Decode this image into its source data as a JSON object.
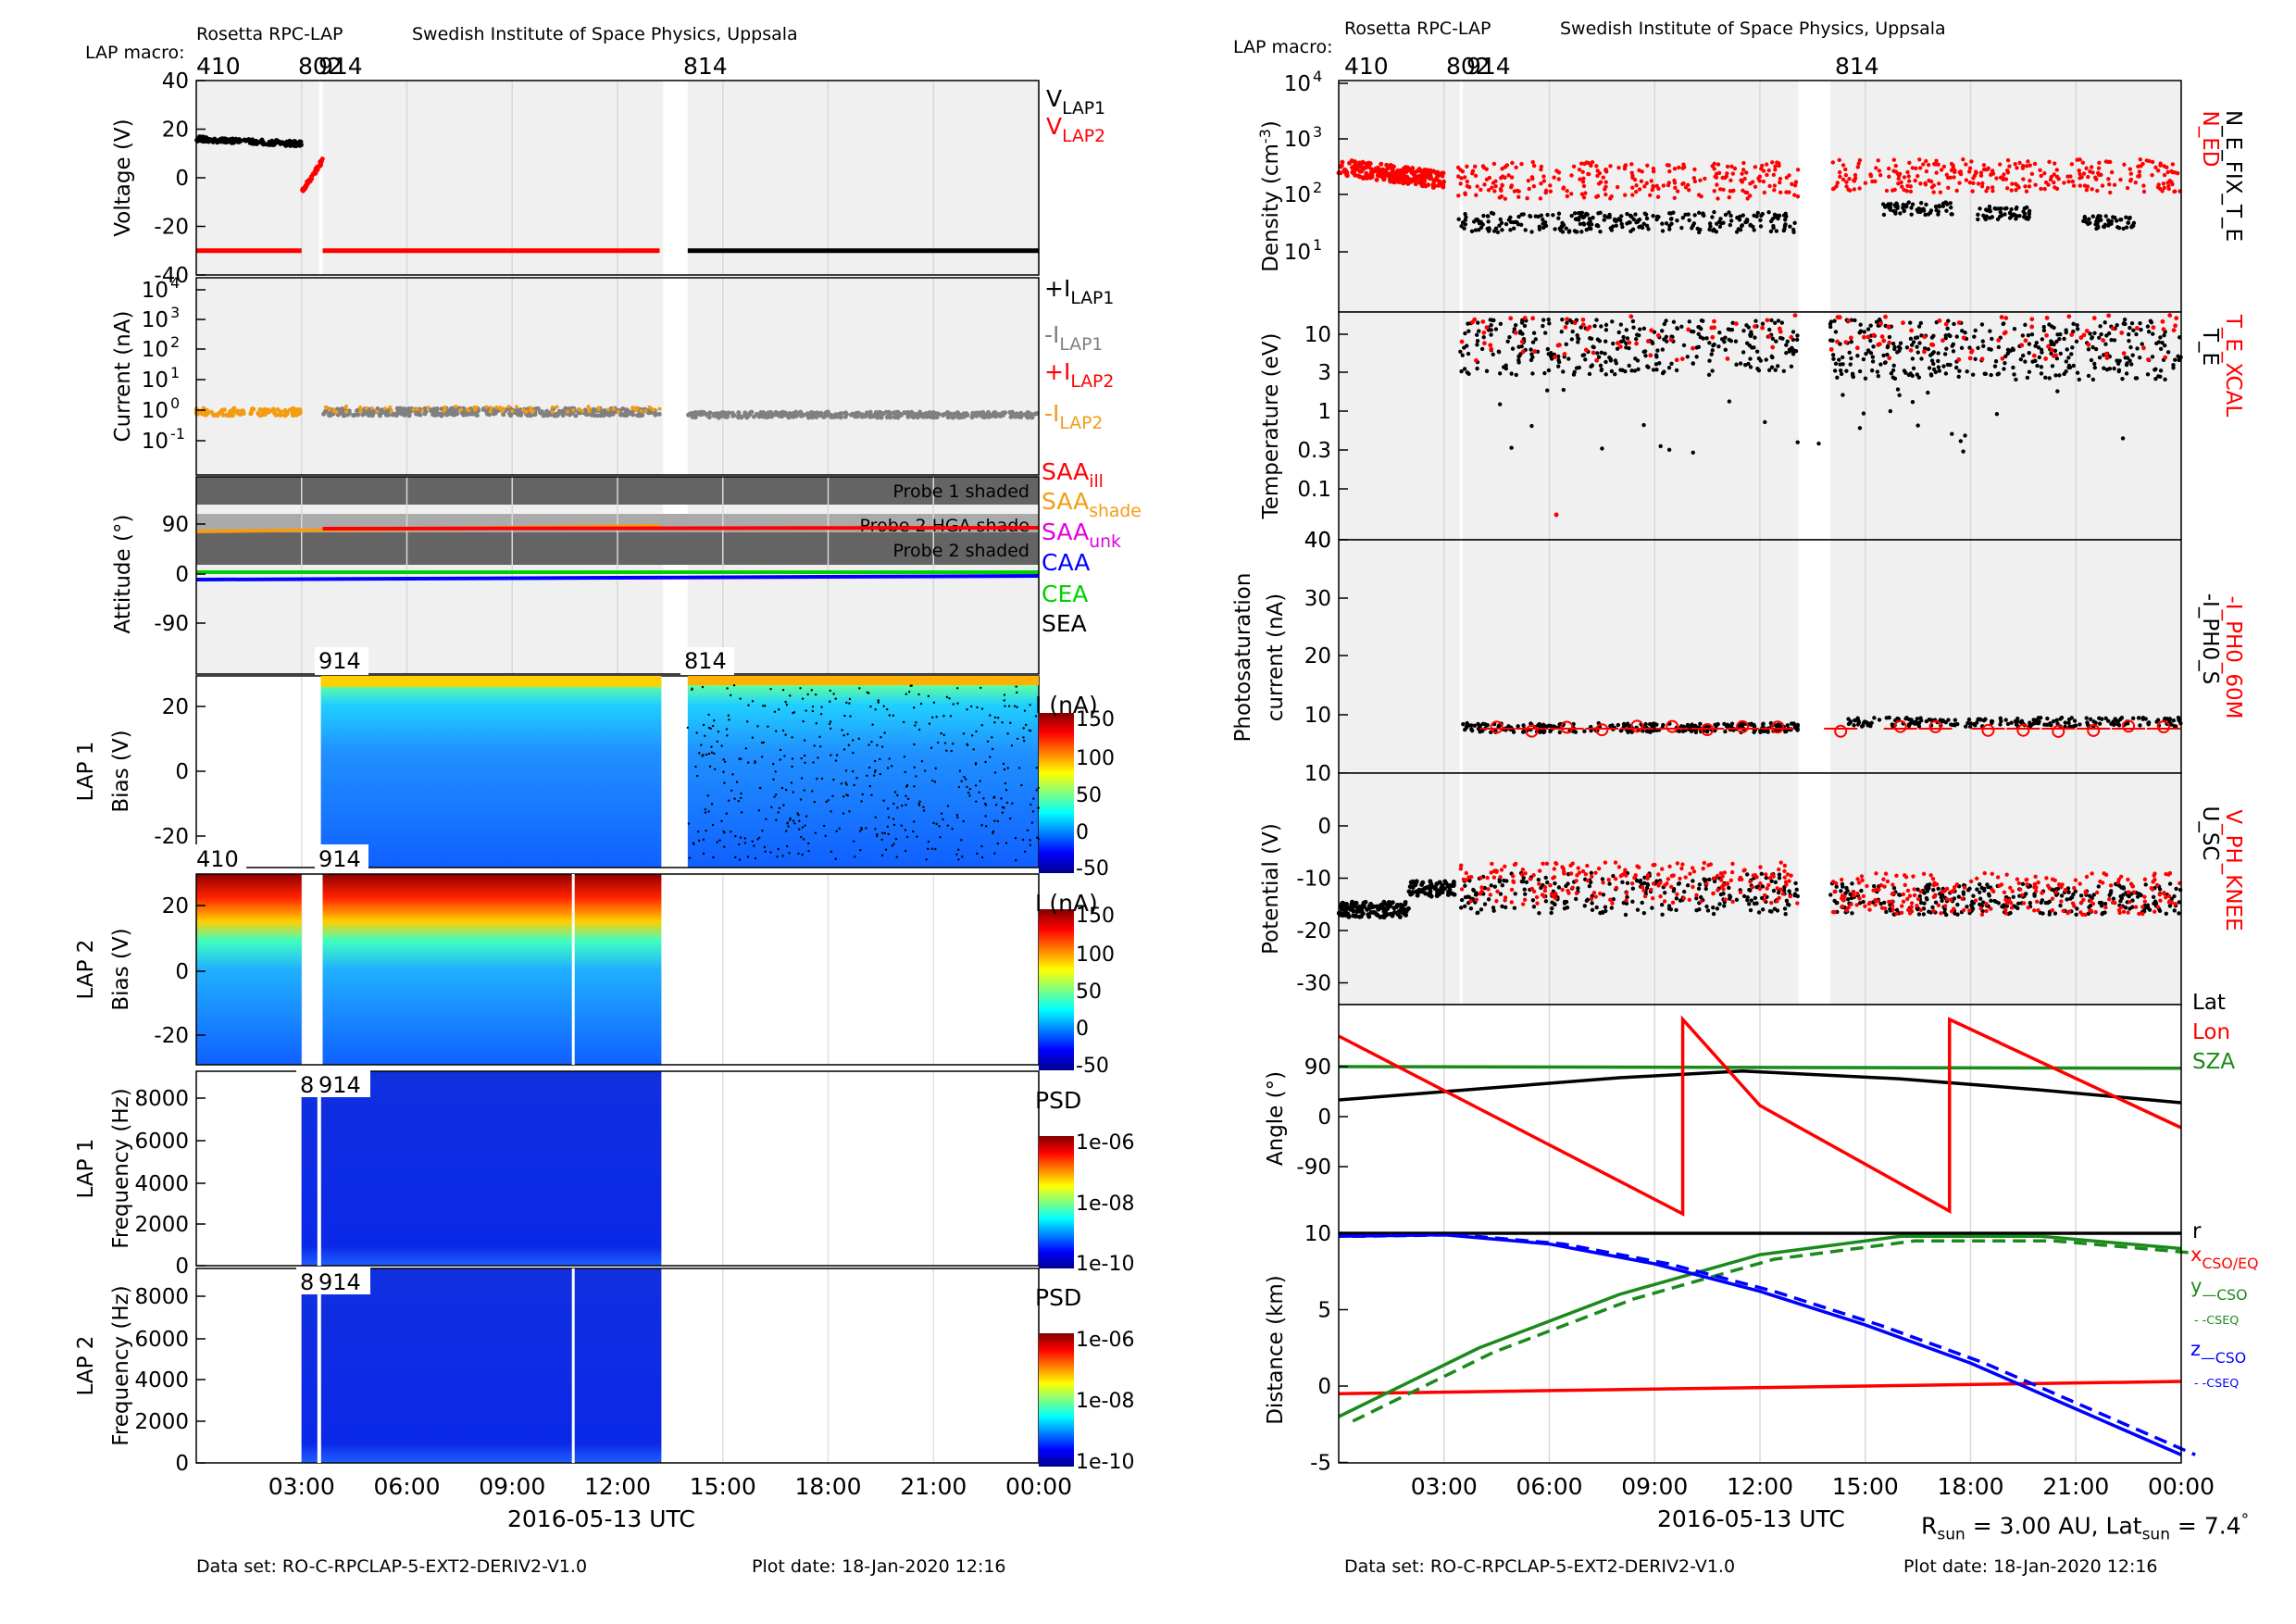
{
  "header": {
    "left_title": "Rosetta RPC-LAP",
    "left_institute": "Swedish Institute of Space Physics, Uppsala",
    "right_title": "Rosetta RPC-LAP",
    "right_institute": "Swedish Institute of Space Physics, Uppsala",
    "macro_label": "LAP macro:",
    "macros": [
      "410",
      "802",
      "914",
      "814"
    ]
  },
  "footer": {
    "dataset_left": "Data set: RO-C-RPCLAP-5-EXT2-DERIV2-V1.0",
    "plotdate_left": "Plot date: 18-Jan-2020 12:16",
    "dataset_right": "Data set: RO-C-RPCLAP-5-EXT2-DERIV2-V1.0",
    "plotdate_right": "Plot date: 18-Jan-2020 12:16",
    "rsun_text": "R",
    "rsun_sub": "sun",
    "rsun_val": " = 3.00 AU, Lat",
    "latsun_sub": "sun",
    "latsun_val": " = 7.4",
    "deg": "°"
  },
  "x_axis": {
    "label": "2016-05-13 UTC",
    "ticks": [
      "03:00",
      "06:00",
      "09:00",
      "12:00",
      "15:00",
      "18:00",
      "21:00",
      "00:00"
    ]
  },
  "colors": {
    "black": "#000000",
    "red": "#ff0000",
    "gray": "#808080",
    "orange": "#f39c12",
    "magenta": "#e000e0",
    "blue": "#0000ff",
    "green": "#00d000",
    "darkgreen": "#1a8a1a",
    "panelbg": "#f0f0f0",
    "shade": "#646464",
    "shade_light": "#aaaaaa"
  },
  "chart_data": [
    {
      "id": "voltage",
      "type": "scatter",
      "ylabel": "Voltage (V)",
      "ylim": [
        -40,
        40
      ],
      "yticks": [
        "40",
        "20",
        "0",
        "-20",
        "-40"
      ],
      "legend": [
        {
          "name": "V",
          "sub": "LAP1",
          "color": "#000000"
        },
        {
          "name": "V",
          "sub": "LAP2",
          "color": "#ff0000"
        }
      ],
      "series": [
        {
          "name": "V_LAP1",
          "x_hours": [
            0,
            0.5,
            1,
            1.5,
            2,
            2.5,
            2.9,
            3.2,
            3.6
          ],
          "y": [
            16,
            16,
            15,
            16,
            15,
            14,
            13,
            12,
            13
          ]
        },
        {
          "name": "V_LAP2",
          "x_hours": [
            3.0,
            3.2,
            3.4,
            3.6
          ],
          "y": [
            -4,
            0,
            4,
            8
          ]
        },
        {
          "name": "V_LAP2 bias",
          "x_hours": [
            0,
            3.0
          ],
          "y": [
            -30,
            -30
          ]
        },
        {
          "name": "V_LAP2 bias",
          "x_hours": [
            3.6,
            13.2
          ],
          "y": [
            -30,
            -30
          ]
        },
        {
          "name": "V_LAP1 bias",
          "x_hours": [
            14.0,
            24
          ],
          "y": [
            -30,
            -30
          ]
        }
      ]
    },
    {
      "id": "current",
      "type": "scatter",
      "ylabel": "Current (nA)",
      "yscale": "log",
      "yticks": [
        "10",
        "10",
        "10",
        "10",
        "10",
        "10"
      ],
      "yexp": [
        "4",
        "3",
        "2",
        "1",
        "0",
        "-1"
      ],
      "legend": [
        {
          "name": "+I",
          "sub": "LAP1",
          "color": "#000000"
        },
        {
          "name": "-I",
          "sub": "LAP1",
          "color": "#808080"
        },
        {
          "name": "+I",
          "sub": "LAP2",
          "color": "#ff0000"
        },
        {
          "name": "-I",
          "sub": "LAP2",
          "color": "#f39c12"
        }
      ]
    },
    {
      "id": "attitude",
      "type": "line",
      "ylabel": "Attitude (°)",
      "yticks": [
        "90",
        "0",
        "-90"
      ],
      "shade_labels": [
        "Probe 1 shaded",
        "Probe 2 HGA shade",
        "Probe 2 shaded"
      ],
      "legend": [
        {
          "name": "SAA",
          "sub": "ill",
          "color": "#ff0000"
        },
        {
          "name": "SAA",
          "sub": "shade",
          "color": "#f39c12"
        },
        {
          "name": "SAA",
          "sub": "unk",
          "color": "#e000e0"
        },
        {
          "name": "CAA",
          "sub": "",
          "color": "#0000ff"
        },
        {
          "name": "CEA",
          "sub": "",
          "color": "#00d000"
        },
        {
          "name": "SEA",
          "sub": "",
          "color": "#000000"
        }
      ]
    },
    {
      "id": "lap1_bias",
      "type": "heatmap",
      "ylabel1": "LAP 1",
      "ylabel2": "Bias (V)",
      "yticks": [
        "20",
        "0",
        "-20"
      ],
      "colorbar_label": "I (nA)",
      "colorbar_ticks": [
        "150",
        "100",
        "50",
        "0",
        "-50"
      ],
      "labels": [
        "914",
        "814"
      ]
    },
    {
      "id": "lap2_bias",
      "type": "heatmap",
      "ylabel1": "LAP 2",
      "ylabel2": "Bias (V)",
      "yticks": [
        "20",
        "0",
        "-20"
      ],
      "colorbar_label": "I (nA)",
      "colorbar_ticks": [
        "150",
        "100",
        "50",
        "0",
        "-50"
      ],
      "labels": [
        "410",
        "914"
      ]
    },
    {
      "id": "lap1_freq",
      "type": "heatmap",
      "ylabel1": "LAP 1",
      "ylabel2": "Frequency (Hz)",
      "yticks": [
        "8000",
        "6000",
        "4000",
        "2000",
        "0"
      ],
      "colorbar_label": "PSD",
      "colorbar_ticks": [
        "1e-06",
        "1e-08",
        "1e-10"
      ],
      "labels": [
        "8",
        "914"
      ]
    },
    {
      "id": "lap2_freq",
      "type": "heatmap",
      "ylabel1": "LAP 2",
      "ylabel2": "Frequency (Hz)",
      "yticks": [
        "8000",
        "6000",
        "4000",
        "2000",
        "0"
      ],
      "colorbar_label": "PSD",
      "colorbar_ticks": [
        "1e-06",
        "1e-08",
        "1e-10"
      ],
      "labels": [
        "8",
        "914"
      ]
    },
    {
      "id": "density",
      "type": "scatter",
      "ylabel": "Density (cm",
      "ylabel_sup": "-3",
      "ylabel_end": ")",
      "yscale": "log",
      "yticks": [
        "10",
        "10",
        "10",
        "10"
      ],
      "yexp": [
        "4",
        "3",
        "2",
        "1"
      ],
      "legend_right": [
        {
          "name": "N_ED",
          "color": "#ff0000"
        },
        {
          "name": "N_E_FIX_T_E",
          "color": "#000000"
        }
      ]
    },
    {
      "id": "temperature",
      "type": "scatter",
      "ylabel": "Temperature (eV)",
      "yscale": "log",
      "yticks": [
        "10",
        "3",
        "1",
        "0.3",
        "0.1",
        "40"
      ],
      "legend_right": [
        {
          "name": "T_E_XCAL",
          "color": "#ff0000"
        },
        {
          "name": "T_E",
          "color": "#000000"
        }
      ]
    },
    {
      "id": "photosat",
      "type": "scatter",
      "ylabel1": "Photosaturation",
      "ylabel2": "current (nA)",
      "ylim": [
        10,
        40
      ],
      "yticks": [
        "40",
        "30",
        "20",
        "10",
        "10"
      ],
      "legend_right": [
        {
          "name": "-I_PH0_60M",
          "color": "#ff0000"
        },
        {
          "name": "-I_PH0_S",
          "color": "#000000"
        }
      ]
    },
    {
      "id": "potential",
      "type": "scatter",
      "ylabel": "Potential (V)",
      "ylim": [
        -30,
        0
      ],
      "yticks": [
        "0",
        "-10",
        "-20",
        "-30"
      ],
      "legend_right": [
        {
          "name": "V_PH_KNEE",
          "color": "#ff0000"
        },
        {
          "name": "U_SC",
          "color": "#000000"
        }
      ]
    },
    {
      "id": "angle",
      "type": "line",
      "ylabel": "Angle (°)",
      "ylim": [
        -180,
        180
      ],
      "yticks": [
        "90",
        "0",
        "-90"
      ],
      "legend": [
        {
          "name": "Lat",
          "color": "#000000"
        },
        {
          "name": "Lon",
          "color": "#ff0000"
        },
        {
          "name": "SZA",
          "color": "#1a8a1a"
        }
      ],
      "series": [
        {
          "name": "Lat",
          "x_hours": [
            0,
            4,
            8,
            11.5,
            16,
            20,
            24
          ],
          "y": [
            30,
            50,
            70,
            82,
            68,
            48,
            25
          ]
        },
        {
          "name": "SZA",
          "x_hours": [
            0,
            24
          ],
          "y": [
            90,
            87
          ]
        },
        {
          "name": "Lon",
          "x_hours": [
            0,
            9.8,
            9.8,
            12,
            17.4,
            17.4,
            24
          ],
          "y": [
            145,
            -175,
            175,
            20,
            -170,
            175,
            -20
          ]
        }
      ]
    },
    {
      "id": "distance",
      "type": "line",
      "ylabel": "Distance (km)",
      "ylim": [
        -5,
        10
      ],
      "yticks": [
        "10",
        "5",
        "0",
        "-5"
      ],
      "legend": [
        {
          "name": "r",
          "sub": "",
          "color": "#000000"
        },
        {
          "name": "x",
          "sub": "CSO/EQ",
          "color": "#ff0000"
        },
        {
          "name": "y",
          "sub": "—CSO",
          "color": "#1a8a1a"
        },
        {
          "name": "",
          "sub": "- -CSEQ",
          "color": "#1a8a1a"
        },
        {
          "name": "z",
          "sub": "—CSO",
          "color": "#0000ff"
        },
        {
          "name": "",
          "sub": "- -CSEQ",
          "color": "#0000ff"
        }
      ],
      "series": [
        {
          "name": "r",
          "x_hours": [
            0,
            24
          ],
          "y": [
            10,
            10
          ]
        },
        {
          "name": "x",
          "x_hours": [
            0,
            24
          ],
          "y": [
            -0.5,
            0.3
          ]
        },
        {
          "name": "y CSO",
          "x_hours": [
            0,
            4,
            8,
            12,
            16,
            20,
            24
          ],
          "y": [
            -2,
            2.5,
            6,
            8.6,
            9.8,
            9.8,
            9.0
          ]
        },
        {
          "name": "z CSO",
          "x_hours": [
            0,
            3,
            6,
            9,
            12,
            15,
            18,
            21,
            24
          ],
          "y": [
            9.8,
            9.9,
            9.3,
            8.0,
            6.2,
            4.0,
            1.5,
            -1.5,
            -4.5
          ]
        }
      ]
    }
  ]
}
